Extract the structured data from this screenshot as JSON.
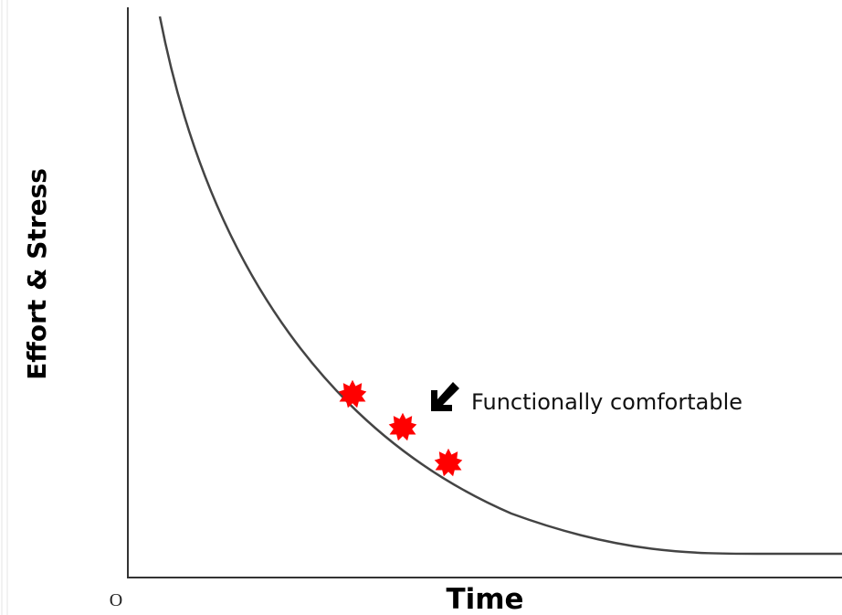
{
  "axis_labels": {
    "y": "Effort & Stress",
    "x": "Time",
    "origin": "O"
  },
  "annotation": "Functionally comfortable"
}
